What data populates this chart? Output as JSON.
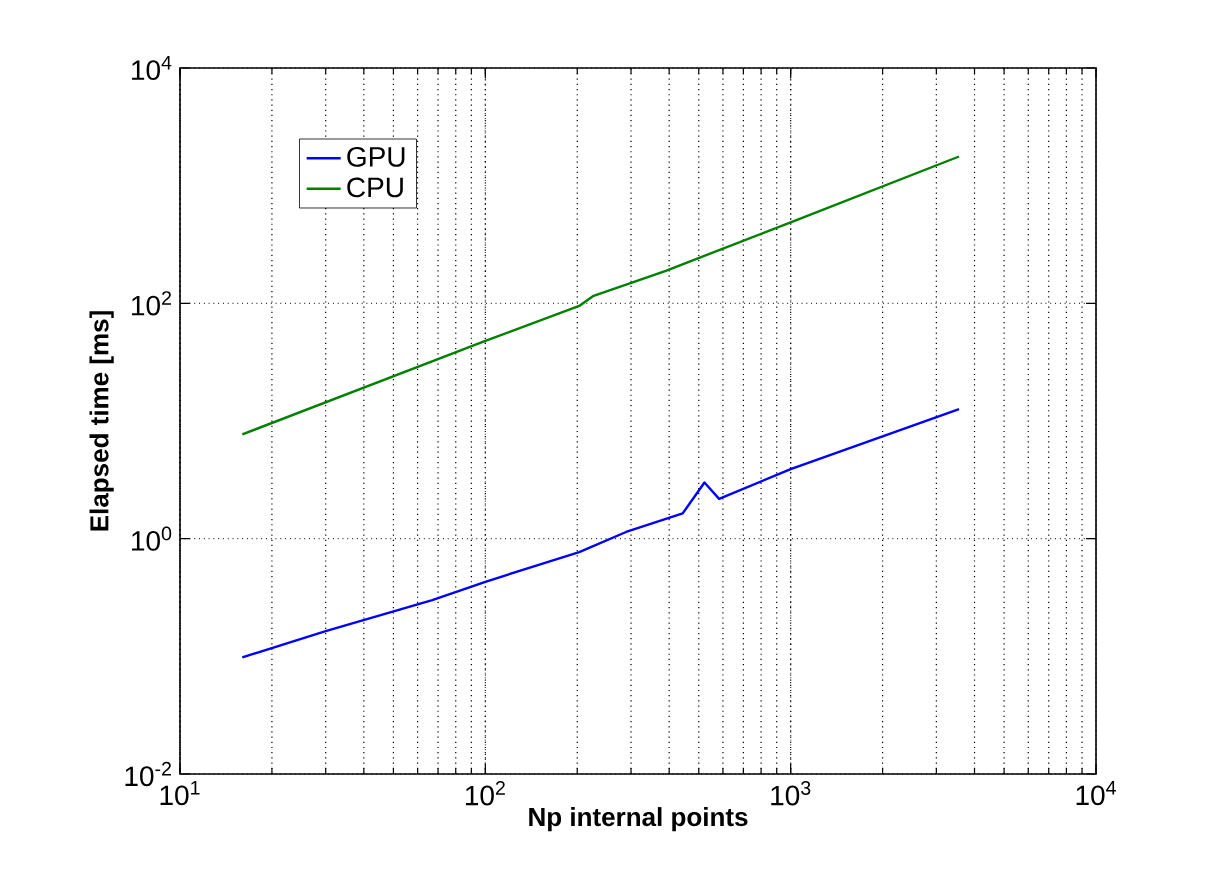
{
  "chart_data": {
    "type": "line",
    "xlabel": "Np internal points",
    "ylabel": "Elapsed time [ms]",
    "log": "xy",
    "grid": true,
    "legend": "top left",
    "xlim": [
      10,
      10000
    ],
    "ylim": [
      0.01,
      10000
    ],
    "xticks": [
      {
        "value": 10,
        "label": "10$^{1}$"
      },
      {
        "value": 100,
        "label": "10$^{2}$"
      },
      {
        "value": 1000,
        "label": "10$^{3}$"
      },
      {
        "value": 10000,
        "label": "10$^{4}$"
      }
    ],
    "yticks": [
      {
        "value": 0.01,
        "label": "10$^{-2}$"
      },
      {
        "value": 1,
        "label": "10$^{0}$"
      },
      {
        "value": 100,
        "label": "10$^{2}$"
      },
      {
        "value": 10000,
        "label": "10$^{4}$"
      }
    ],
    "series": [
      {
        "name": "GPU",
        "color": "#0000ff",
        "x": [
          16,
          30,
          67,
          100,
          203,
          289,
          443,
          522,
          583,
          1000,
          3560
        ],
        "values": [
          0.098,
          0.164,
          0.3,
          0.43,
          0.77,
          1.14,
          1.64,
          3.0,
          2.18,
          3.9,
          12.6
        ]
      },
      {
        "name": "CPU",
        "color": "#008000",
        "x": [
          16,
          100,
          203,
          225,
          390,
          1000,
          3560
        ],
        "values": [
          7.7,
          48,
          95,
          115,
          189,
          488,
          1770
        ]
      }
    ]
  }
}
